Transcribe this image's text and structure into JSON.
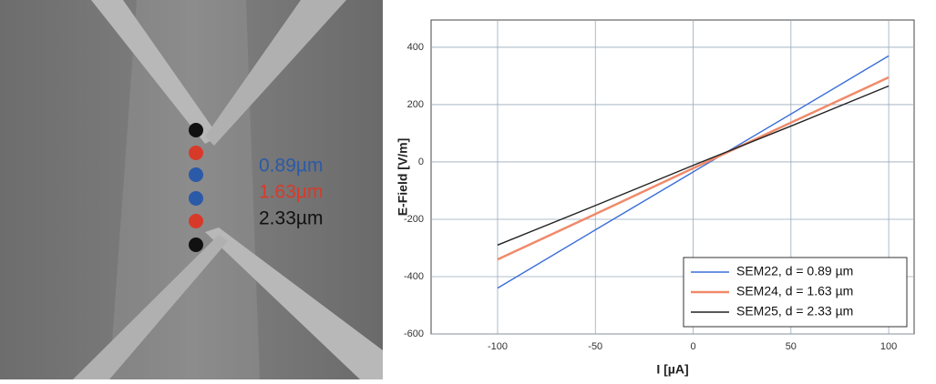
{
  "sem_image": {
    "labels": [
      "0.89µm",
      "1.63µm",
      "2.33µm"
    ],
    "label_colors": [
      "#2a5aa8",
      "#d83a2a",
      "#111111"
    ]
  },
  "chart_data": {
    "type": "line",
    "xlabel": "I [µA]",
    "ylabel": "E-Field [V/m]",
    "x": [
      -100,
      -50,
      0,
      50,
      100
    ],
    "series": [
      {
        "name": "SEM22, d = 0.89 µm",
        "color": "#3a6fd8",
        "values": [
          -440,
          -237,
          -35,
          167,
          370
        ]
      },
      {
        "name": "SEM24, d = 1.63 µm",
        "color": "#f08a6a",
        "values": [
          -340,
          -182,
          -22,
          137,
          295
        ]
      },
      {
        "name": "SEM25, d = 2.33 µm",
        "color": "#222222",
        "values": [
          -290,
          -152,
          -12,
          125,
          265
        ]
      }
    ],
    "xlim": [
      -134,
      113
    ],
    "ylim": [
      -600,
      495
    ],
    "xticks": [
      -100,
      -50,
      0,
      50,
      100
    ],
    "yticks": [
      -600,
      -400,
      -200,
      0,
      200,
      400
    ],
    "grid": true,
    "legend": "lower right"
  }
}
